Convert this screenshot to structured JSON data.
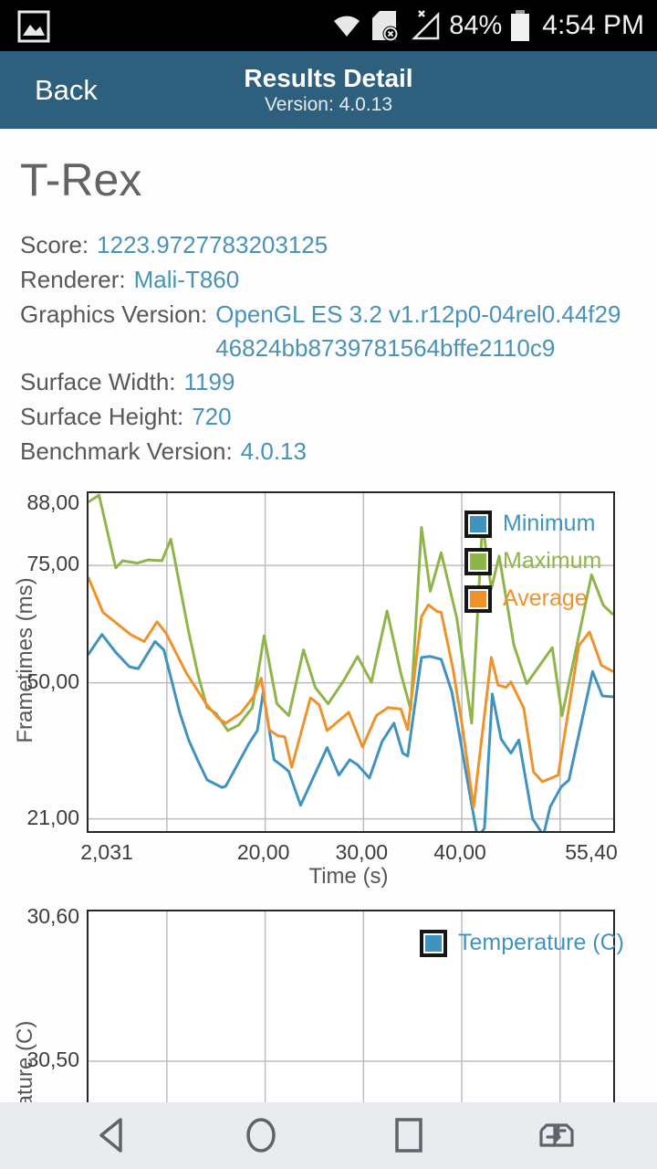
{
  "status_bar": {
    "time": "4:54 PM",
    "battery_pct": "84%",
    "icons": [
      "image-thumbnail-icon",
      "wifi-icon",
      "sim-disabled-icon",
      "no-signal-icon",
      "battery-icon"
    ]
  },
  "header": {
    "back_label": "Back",
    "title": "Results Detail",
    "subtitle": "Version: 4.0.13"
  },
  "result": {
    "title": "T-Rex",
    "rows": [
      {
        "label": "Score:",
        "value": "1223.9727783203125"
      },
      {
        "label": "Renderer:",
        "value": "Mali-T860"
      },
      {
        "label": "Graphics Version:",
        "value": "OpenGL ES 3.2 v1.r12p0-04rel0.44f2946824bb8739781564bffe2110c9"
      },
      {
        "label": "Surface Width:",
        "value": "1199"
      },
      {
        "label": "Surface Height:",
        "value": "720"
      },
      {
        "label": "Benchmark Version:",
        "value": "4.0.13"
      }
    ]
  },
  "colors": {
    "header_bg": "#2e5f7d",
    "value_text": "#4a93b4",
    "minimum": "#4093bf",
    "maximum": "#8fb54a",
    "average": "#f0922b",
    "grid": "#bdbdbd",
    "navbar_bg": "#e9ebee",
    "navbar_icon": "#5d646b"
  },
  "chart_data": [
    {
      "type": "line",
      "xlabel": "Time (s)",
      "ylabel": "Frametimes (ms)",
      "xlim": [
        2.031,
        55.4
      ],
      "ylim": [
        18.4,
        90.4
      ],
      "grid": true,
      "legend_position": "top-right",
      "x_gridlines": [
        10,
        20,
        30,
        40,
        50
      ],
      "y_gridlines": [
        75,
        50,
        21
      ],
      "xticks": [
        {
          "t": 2.031,
          "label": "2,031"
        },
        {
          "t": 20,
          "label": "20,00"
        },
        {
          "t": 30,
          "label": "30,00"
        },
        {
          "t": 40,
          "label": "40,00"
        },
        {
          "t": 55.4,
          "label": "55,40"
        }
      ],
      "yticks": [
        {
          "v": 88,
          "label": "88,00"
        },
        {
          "v": 75,
          "label": "75,00"
        },
        {
          "v": 50,
          "label": "50,00"
        },
        {
          "v": 21,
          "label": "21,00"
        }
      ],
      "series": [
        {
          "name": "Minimum",
          "color": "#4093bf",
          "points": [
            [
              2,
              56
            ],
            [
              3.4,
              60.3
            ],
            [
              4.8,
              56.5
            ],
            [
              6.2,
              53.4
            ],
            [
              7.1,
              53
            ],
            [
              8.8,
              58.8
            ],
            [
              9.7,
              57
            ],
            [
              11.3,
              43.7
            ],
            [
              12.2,
              37.9
            ],
            [
              13.2,
              33.2
            ],
            [
              14.1,
              29.3
            ],
            [
              15.6,
              27.7
            ],
            [
              16,
              28
            ],
            [
              17.2,
              32.6
            ],
            [
              18.3,
              36.9
            ],
            [
              19.2,
              39.8
            ],
            [
              19.8,
              48
            ],
            [
              20.9,
              33.6
            ],
            [
              21.9,
              32
            ],
            [
              22.4,
              31.1
            ],
            [
              23.6,
              23.9
            ],
            [
              26.3,
              36.2
            ],
            [
              27.5,
              30.3
            ],
            [
              28.6,
              33.6
            ],
            [
              29.4,
              32.5
            ],
            [
              30.6,
              29.7
            ],
            [
              31.9,
              37.5
            ],
            [
              33.1,
              41.4
            ],
            [
              34,
              35
            ],
            [
              34.5,
              34.4
            ],
            [
              35.9,
              55.4
            ],
            [
              36.8,
              55.6
            ],
            [
              37.9,
              55
            ],
            [
              39,
              48
            ],
            [
              40.5,
              30
            ],
            [
              41.6,
              17
            ],
            [
              42.3,
              19
            ],
            [
              43.1,
              47.6
            ],
            [
              44,
              38
            ],
            [
              45,
              35
            ],
            [
              45.8,
              37.8
            ],
            [
              47.2,
              21
            ],
            [
              48.3,
              17.5
            ],
            [
              49,
              23.6
            ],
            [
              50.1,
              27.8
            ],
            [
              50.9,
              29.3
            ],
            [
              53.3,
              52.4
            ],
            [
              54.3,
              47.2
            ],
            [
              55.4,
              47
            ]
          ]
        },
        {
          "name": "Maximum",
          "color": "#8fb54a",
          "points": [
            [
              2,
              88.5
            ],
            [
              3.1,
              90
            ],
            [
              4.8,
              74.5
            ],
            [
              5.5,
              76
            ],
            [
              7,
              75.5
            ],
            [
              8.1,
              76.2
            ],
            [
              9.5,
              76
            ],
            [
              10.4,
              80.6
            ],
            [
              12.2,
              61
            ],
            [
              13.2,
              51.5
            ],
            [
              14.1,
              44.7
            ],
            [
              15,
              43.5
            ],
            [
              16.2,
              39.8
            ],
            [
              17.3,
              41
            ],
            [
              18.7,
              44.7
            ],
            [
              19.9,
              60
            ],
            [
              21.2,
              45.5
            ],
            [
              22.4,
              43
            ],
            [
              23.9,
              57
            ],
            [
              25.1,
              49
            ],
            [
              26.4,
              45.5
            ],
            [
              28,
              50.5
            ],
            [
              29.4,
              55.6
            ],
            [
              30.8,
              50.1
            ],
            [
              32.4,
              65.3
            ],
            [
              33.8,
              52
            ],
            [
              34.8,
              44.3
            ],
            [
              35.9,
              83.1
            ],
            [
              36.8,
              69.5
            ],
            [
              37.9,
              77.7
            ],
            [
              39.5,
              63.7
            ],
            [
              41,
              41.4
            ],
            [
              42.1,
              84
            ],
            [
              43,
              70
            ],
            [
              43.8,
              77
            ],
            [
              45.3,
              58
            ],
            [
              46.6,
              49.8
            ],
            [
              49.2,
              57.5
            ],
            [
              50.2,
              43
            ],
            [
              53.2,
              73
            ],
            [
              54.4,
              66.5
            ],
            [
              55.4,
              64.5
            ]
          ]
        },
        {
          "name": "Average",
          "color": "#f0922b",
          "points": [
            [
              2,
              72.5
            ],
            [
              3.5,
              65
            ],
            [
              5,
              62.5
            ],
            [
              6.3,
              60.3
            ],
            [
              7.7,
              58.8
            ],
            [
              9,
              63
            ],
            [
              9.9,
              60.6
            ],
            [
              12,
              52
            ],
            [
              14,
              45.5
            ],
            [
              15.2,
              42.5
            ],
            [
              16,
              41.4
            ],
            [
              17.5,
              43.5
            ],
            [
              18.8,
              47
            ],
            [
              19.6,
              51
            ],
            [
              20.4,
              40
            ],
            [
              21.3,
              38.7
            ],
            [
              22,
              38.5
            ],
            [
              22.7,
              32
            ],
            [
              24.6,
              46.8
            ],
            [
              25.5,
              45.3
            ],
            [
              26.3,
              39.8
            ],
            [
              28.5,
              43.7
            ],
            [
              29.9,
              36.3
            ],
            [
              31.3,
              43
            ],
            [
              32.5,
              44.7
            ],
            [
              33.8,
              44.4
            ],
            [
              34.5,
              40
            ],
            [
              35.9,
              64.1
            ],
            [
              36.6,
              66.6
            ],
            [
              37.5,
              65.2
            ],
            [
              37.9,
              65
            ],
            [
              39.1,
              53
            ],
            [
              40,
              41.4
            ],
            [
              41.2,
              23.5
            ],
            [
              43,
              55.4
            ],
            [
              43.7,
              49.5
            ],
            [
              44.5,
              49
            ],
            [
              45,
              50.2
            ],
            [
              46.3,
              44.6
            ],
            [
              47.3,
              31
            ],
            [
              48.2,
              28.9
            ],
            [
              49.8,
              30.3
            ],
            [
              51.9,
              57.9
            ],
            [
              53,
              60.8
            ],
            [
              54.2,
              53.7
            ],
            [
              55.4,
              52.4
            ]
          ]
        }
      ]
    },
    {
      "type": "line",
      "xlabel": "",
      "ylabel": "Temperature (C)",
      "xlim": [
        2.031,
        55.4
      ],
      "ylim": [
        30.4236,
        30.6045
      ],
      "grid": true,
      "legend_position": "top-right",
      "x_gridlines": [
        10,
        20,
        30,
        40,
        50
      ],
      "y_gridlines": [
        30.5
      ],
      "xticks": [],
      "yticks": [
        {
          "v": 30.6,
          "label": "30,60"
        },
        {
          "v": 30.5,
          "label": "30,50"
        }
      ],
      "series": [
        {
          "name": "Temperature (C)",
          "color": "#4093bf",
          "points": []
        }
      ]
    }
  ],
  "navbar": {
    "icons": [
      "back-nav-icon",
      "home-nav-icon",
      "recents-nav-icon",
      "sim-switch-nav-icon"
    ]
  }
}
